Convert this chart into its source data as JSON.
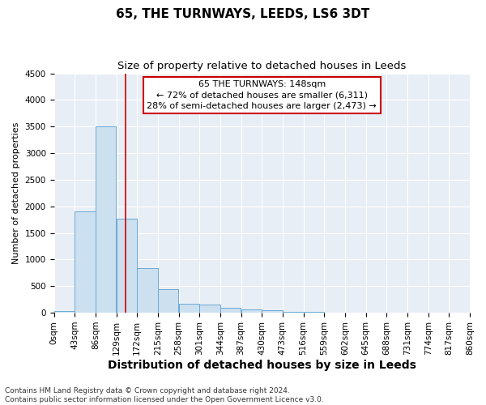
{
  "title": "65, THE TURNWAYS, LEEDS, LS6 3DT",
  "subtitle": "Size of property relative to detached houses in Leeds",
  "xlabel": "Distribution of detached houses by size in Leeds",
  "ylabel": "Number of detached properties",
  "bin_edges": [
    0,
    43,
    86,
    129,
    172,
    215,
    258,
    301,
    344,
    387,
    430,
    473,
    516,
    559,
    602,
    645,
    688,
    731,
    774,
    817,
    860
  ],
  "bar_heights": [
    30,
    1900,
    3500,
    1770,
    840,
    450,
    170,
    155,
    90,
    55,
    40,
    20,
    10,
    5,
    3,
    2,
    1,
    0,
    0,
    0
  ],
  "bar_color": "#cce0f0",
  "bar_edge_color": "#6aaad4",
  "property_size": 148,
  "annotation_title": "65 THE TURNWAYS: 148sqm",
  "annotation_line1": "← 72% of detached houses are smaller (6,311)",
  "annotation_line2": "28% of semi-detached houses are larger (2,473) →",
  "vline_color": "#cc0000",
  "annotation_box_color": "#cc0000",
  "ylim": [
    0,
    4500
  ],
  "yticks": [
    0,
    500,
    1000,
    1500,
    2000,
    2500,
    3000,
    3500,
    4000,
    4500
  ],
  "footer_line1": "Contains HM Land Registry data © Crown copyright and database right 2024.",
  "footer_line2": "Contains public sector information licensed under the Open Government Licence v3.0.",
  "plot_bg_color": "#e8eef5",
  "fig_bg_color": "#ffffff",
  "title_fontsize": 11,
  "subtitle_fontsize": 9.5,
  "xlabel_fontsize": 10,
  "ylabel_fontsize": 8,
  "tick_fontsize": 7.5,
  "annotation_fontsize": 8,
  "footer_fontsize": 6.5
}
